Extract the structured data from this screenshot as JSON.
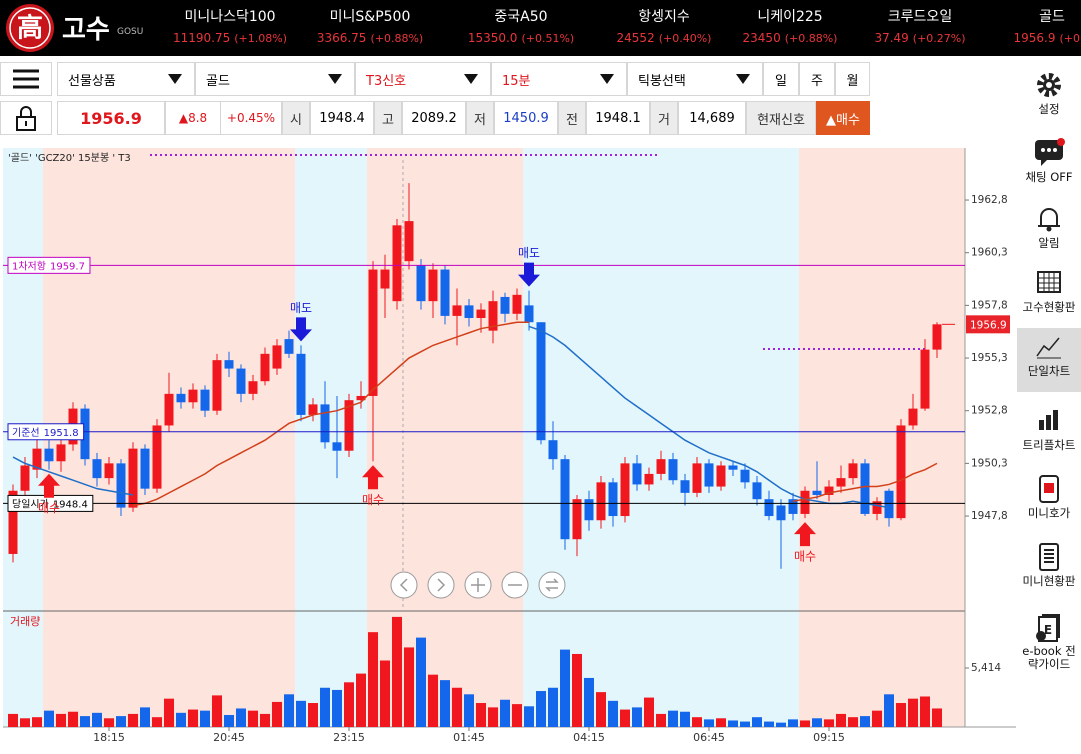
{
  "header": {
    "logo_mark": "高",
    "logo": "고수",
    "logo_sub": "GOSU",
    "tickers": [
      {
        "name": "미니나스닥100",
        "price": "11190.75",
        "change": "(+1.08%)"
      },
      {
        "name": "미니S&P500",
        "price": "3366.75",
        "change": "(+0.88%)"
      },
      {
        "name": "중국A50",
        "price": "15350.0",
        "change": "(+0.51%)"
      },
      {
        "name": "항셍지수",
        "price": "24552",
        "change": "(+0.40%)"
      },
      {
        "name": "니케이225",
        "price": "23450",
        "change": "(+0.88%)"
      },
      {
        "name": "크루드오일",
        "price": "37.49",
        "change": "(+0.27%)"
      },
      {
        "name": "골드",
        "price": "1956.9",
        "change": "(+0.4"
      }
    ]
  },
  "toolbar": {
    "selects": [
      "선물상품",
      "골드",
      "T3신호",
      "15분",
      "틱봉선택"
    ],
    "periods": [
      "일",
      "주",
      "월"
    ]
  },
  "quote": {
    "price": "1956.9",
    "change": "▲8.8",
    "change_pct": "+0.45%",
    "fields": [
      {
        "label": "시",
        "value": "1948.4"
      },
      {
        "label": "고",
        "value": "2089.2"
      },
      {
        "label": "저",
        "value": "1450.9"
      },
      {
        "label": "전",
        "value": "1948.1"
      },
      {
        "label": "거",
        "value": "14,689"
      }
    ],
    "signal_label": "현재신호",
    "signal": "▲매수"
  },
  "sidebar": [
    {
      "label": "설정"
    },
    {
      "label": "채팅 OFF"
    },
    {
      "label": "알림"
    },
    {
      "label": "고수현황판"
    },
    {
      "label": "단일차트"
    },
    {
      "label": "트리플차트"
    },
    {
      "label": "미니호가"
    },
    {
      "label": "미니현황판"
    },
    {
      "label": "e-book 전략가이드"
    }
  ],
  "chart_data": {
    "type": "candlestick",
    "title": "'골드' 'GCZ20' 15분봉 ' T3",
    "up_color": "#f0181e",
    "down_color": "#1467ea",
    "ylim": [
      1943.34,
      1965.27
    ],
    "yticks": [
      {
        "value": 1962.8,
        "label": "1962,8"
      },
      {
        "value": 1960.3,
        "label": "1960,3"
      },
      {
        "value": 1957.8,
        "label": "1957,8"
      },
      {
        "value": 1955.3,
        "label": "1955,3"
      },
      {
        "value": 1952.8,
        "label": "1952,8"
      },
      {
        "value": 1950.3,
        "label": "1950,3"
      },
      {
        "value": 1947.8,
        "label": "1947,8"
      }
    ],
    "xticks": [
      {
        "value": 8,
        "label": "18:15"
      },
      {
        "value": 18,
        "label": "20:45"
      },
      {
        "value": 28,
        "label": "23:15"
      },
      {
        "value": 38,
        "label": "01:45"
      },
      {
        "value": 48,
        "label": "04:15"
      },
      {
        "value": 58,
        "label": "06:45"
      },
      {
        "value": 68,
        "label": "09:15"
      }
    ],
    "ohlc": [
      [
        1946.0,
        1949.3,
        1945.6,
        1949.0
      ],
      [
        1949.0,
        1950.6,
        1948.7,
        1950.2
      ],
      [
        1950.0,
        1951.5,
        1949.6,
        1951.0
      ],
      [
        1951.0,
        1951.4,
        1950.0,
        1950.4
      ],
      [
        1950.4,
        1951.6,
        1949.9,
        1951.2
      ],
      [
        1951.2,
        1953.2,
        1950.9,
        1952.9
      ],
      [
        1952.9,
        1953.1,
        1950.2,
        1950.5
      ],
      [
        1950.5,
        1950.8,
        1949.2,
        1949.6
      ],
      [
        1949.6,
        1950.6,
        1949.3,
        1950.3
      ],
      [
        1950.3,
        1950.5,
        1947.8,
        1948.2
      ],
      [
        1948.2,
        1951.3,
        1948.0,
        1951.0
      ],
      [
        1951.0,
        1951.2,
        1948.8,
        1949.1
      ],
      [
        1949.1,
        1952.4,
        1948.9,
        1952.1
      ],
      [
        1952.1,
        1954.6,
        1951.8,
        1953.6
      ],
      [
        1953.6,
        1953.9,
        1952.9,
        1953.2
      ],
      [
        1953.2,
        1954.1,
        1952.9,
        1953.8
      ],
      [
        1953.8,
        1954.0,
        1952.5,
        1952.8
      ],
      [
        1952.8,
        1955.5,
        1952.6,
        1955.2
      ],
      [
        1955.2,
        1955.6,
        1954.4,
        1954.8
      ],
      [
        1954.8,
        1955.0,
        1953.2,
        1953.6
      ],
      [
        1953.6,
        1954.5,
        1953.3,
        1954.2
      ],
      [
        1954.2,
        1955.8,
        1954.0,
        1955.5
      ],
      [
        1954.8,
        1956.2,
        1954.5,
        1955.9
      ],
      [
        1956.2,
        1956.6,
        1955.3,
        1955.5
      ],
      [
        1955.5,
        1955.9,
        1952.3,
        1952.6
      ],
      [
        1952.6,
        1953.4,
        1952.3,
        1953.1
      ],
      [
        1953.1,
        1954.2,
        1951.0,
        1951.3
      ],
      [
        1951.3,
        1953.5,
        1949.6,
        1950.9
      ],
      [
        1950.9,
        1953.6,
        1950.6,
        1953.3
      ],
      [
        1953.3,
        1954.2,
        1952.9,
        1953.5
      ],
      [
        1953.5,
        1959.9,
        1950.4,
        1959.5
      ],
      [
        1958.6,
        1960.2,
        1957.2,
        1959.5
      ],
      [
        1958.0,
        1961.9,
        1957.6,
        1961.6
      ],
      [
        1959.9,
        1963.6,
        1959.5,
        1961.8
      ],
      [
        1959.7,
        1960.0,
        1957.6,
        1958.0
      ],
      [
        1958.0,
        1959.8,
        1957.2,
        1959.5
      ],
      [
        1959.5,
        1959.7,
        1956.9,
        1957.3
      ],
      [
        1957.3,
        1958.6,
        1955.9,
        1957.8
      ],
      [
        1957.8,
        1958.1,
        1956.8,
        1957.2
      ],
      [
        1957.2,
        1957.9,
        1956.5,
        1957.6
      ],
      [
        1956.6,
        1958.5,
        1956.0,
        1958.0
      ],
      [
        1958.2,
        1958.4,
        1957.0,
        1957.4
      ],
      [
        1957.4,
        1958.6,
        1957.1,
        1958.3
      ],
      [
        1957.8,
        1958.5,
        1956.6,
        1957.0
      ],
      [
        1957.0,
        1957.0,
        1951.2,
        1951.4
      ],
      [
        1951.4,
        1952.3,
        1950.0,
        1950.5
      ],
      [
        1950.5,
        1950.7,
        1946.2,
        1946.7
      ],
      [
        1946.7,
        1948.8,
        1945.9,
        1948.6
      ],
      [
        1948.6,
        1949.0,
        1947.1,
        1947.6
      ],
      [
        1947.6,
        1949.7,
        1947.2,
        1949.4
      ],
      [
        1949.4,
        1949.6,
        1947.3,
        1947.8
      ],
      [
        1947.8,
        1950.6,
        1947.5,
        1950.3
      ],
      [
        1950.3,
        1950.7,
        1949.0,
        1949.3
      ],
      [
        1949.3,
        1950.1,
        1949.0,
        1949.8
      ],
      [
        1949.8,
        1950.9,
        1949.5,
        1950.5
      ],
      [
        1950.5,
        1950.8,
        1949.3,
        1949.5
      ],
      [
        1949.5,
        1949.8,
        1948.3,
        1948.9
      ],
      [
        1948.9,
        1950.6,
        1948.7,
        1950.3
      ],
      [
        1950.3,
        1950.5,
        1948.9,
        1949.2
      ],
      [
        1949.2,
        1950.4,
        1949.0,
        1950.2
      ],
      [
        1950.2,
        1950.4,
        1949.7,
        1950.0
      ],
      [
        1950.0,
        1950.3,
        1949.1,
        1949.4
      ],
      [
        1949.4,
        1949.7,
        1948.3,
        1948.6
      ],
      [
        1948.6,
        1949.0,
        1947.6,
        1947.8
      ],
      [
        1948.3,
        1948.6,
        1945.3,
        1947.6
      ],
      [
        1948.6,
        1948.9,
        1947.6,
        1947.9
      ],
      [
        1947.9,
        1949.2,
        1947.7,
        1949.0
      ],
      [
        1949.0,
        1950.4,
        1948.6,
        1948.8
      ],
      [
        1948.8,
        1949.5,
        1948.5,
        1949.2
      ],
      [
        1949.2,
        1950.2,
        1948.9,
        1949.6
      ],
      [
        1949.6,
        1950.5,
        1949.3,
        1950.3
      ],
      [
        1950.3,
        1950.5,
        1947.8,
        1947.9
      ],
      [
        1947.9,
        1948.7,
        1947.6,
        1948.5
      ],
      [
        1949.0,
        1949.1,
        1947.3,
        1947.7
      ],
      [
        1947.7,
        1952.4,
        1947.6,
        1952.1
      ],
      [
        1952.1,
        1953.6,
        1951.9,
        1952.9
      ],
      [
        1952.9,
        1956.2,
        1952.8,
        1955.7
      ],
      [
        1955.7,
        1957.0,
        1955.3,
        1956.9
      ]
    ],
    "volume": [
      1200,
      800,
      900,
      1500,
      1200,
      1400,
      1000,
      1300,
      800,
      1000,
      1200,
      1800,
      900,
      2600,
      1300,
      1600,
      1500,
      2900,
      1100,
      1700,
      1500,
      1200,
      2300,
      3000,
      2400,
      2200,
      3600,
      3400,
      4100,
      4900,
      8700,
      6100,
      10100,
      7300,
      8200,
      4800,
      4300,
      3600,
      3000,
      2200,
      1800,
      2500,
      2100,
      1900,
      3300,
      3600,
      7100,
      6700,
      4500,
      3200,
      2400,
      1600,
      1800,
      2700,
      1200,
      1500,
      1400,
      900,
      700,
      800,
      600,
      500,
      900,
      500,
      400,
      700,
      600,
      800,
      700,
      1200,
      900,
      1000,
      1500,
      3000,
      2200,
      2600,
      2800,
      1700
    ],
    "volume_label": "거래량",
    "vlim": [
      0,
      10550
    ],
    "vticks": [
      {
        "value": 5414,
        "label": "5,414"
      }
    ],
    "series": [
      {
        "color": "#1f6fc9",
        "values": [
          1950.6,
          1950.3,
          1950.1,
          1949.9,
          1949.7,
          1949.5,
          1949.3,
          1949.1,
          1949.0,
          1948.9,
          1948.8,
          null,
          null,
          null,
          null,
          null,
          null,
          null,
          null,
          null,
          null,
          null,
          null,
          null,
          null,
          null,
          null,
          null,
          null,
          null,
          null,
          null,
          null,
          null,
          null,
          null,
          null,
          null,
          null,
          null,
          null,
          null,
          null,
          1956.8,
          1956.6,
          1956.3,
          1955.9,
          1955.4,
          1954.9,
          1954.4,
          1953.9,
          1953.4,
          1953.0,
          1952.6,
          1952.2,
          1951.8,
          1951.4,
          1951.1,
          1950.8,
          1950.6,
          1950.4,
          1950.2,
          1949.9,
          1949.5,
          1949.1,
          1948.8,
          1948.6,
          1948.5,
          1948.4,
          1948.4,
          1948.5,
          1948.4,
          1948.3,
          1948.2,
          null,
          null,
          null,
          null
        ]
      },
      {
        "color": "#d2401a",
        "values": [
          null,
          null,
          null,
          null,
          null,
          null,
          null,
          null,
          null,
          null,
          1948.3,
          1948.4,
          1948.6,
          1948.9,
          1949.2,
          1949.5,
          1949.8,
          1950.2,
          1950.5,
          1950.8,
          1951.1,
          1951.4,
          1951.8,
          1952.2,
          1952.4,
          1952.6,
          1952.7,
          1952.8,
          1953.0,
          1953.2,
          1953.8,
          1954.3,
          1954.8,
          1955.3,
          1955.6,
          1955.9,
          1956.1,
          1956.3,
          1956.5,
          1956.7,
          1956.8,
          1956.9,
          1957.0,
          1957.0,
          null,
          null,
          null,
          null,
          null,
          null,
          null,
          null,
          null,
          null,
          null,
          null,
          null,
          null,
          null,
          null,
          null,
          null,
          null,
          null,
          null,
          1948.5,
          1948.6,
          1948.7,
          1948.9,
          1949.0,
          1949.1,
          1949.2,
          1949.2,
          1949.3,
          1949.5,
          1949.8,
          1950.0,
          1950.3
        ]
      }
    ],
    "levels": [
      {
        "name": "1차저항",
        "value": 1959.7,
        "color": "#c000c0"
      },
      {
        "name": "기준선",
        "value": 1951.8,
        "color": "#1a1ac8"
      },
      {
        "name": "당일시가",
        "value": 1948.4,
        "color": "#000000"
      }
    ],
    "signals": [
      {
        "label": "매도",
        "index": 24,
        "side": "sell"
      },
      {
        "label": "매도",
        "index": 43,
        "side": "sell"
      },
      {
        "label": "매수",
        "index": 3,
        "side": "buy"
      },
      {
        "label": "매수",
        "index": 30,
        "side": "buy"
      },
      {
        "label": "매수",
        "index": 66,
        "side": "buy"
      }
    ]
  }
}
